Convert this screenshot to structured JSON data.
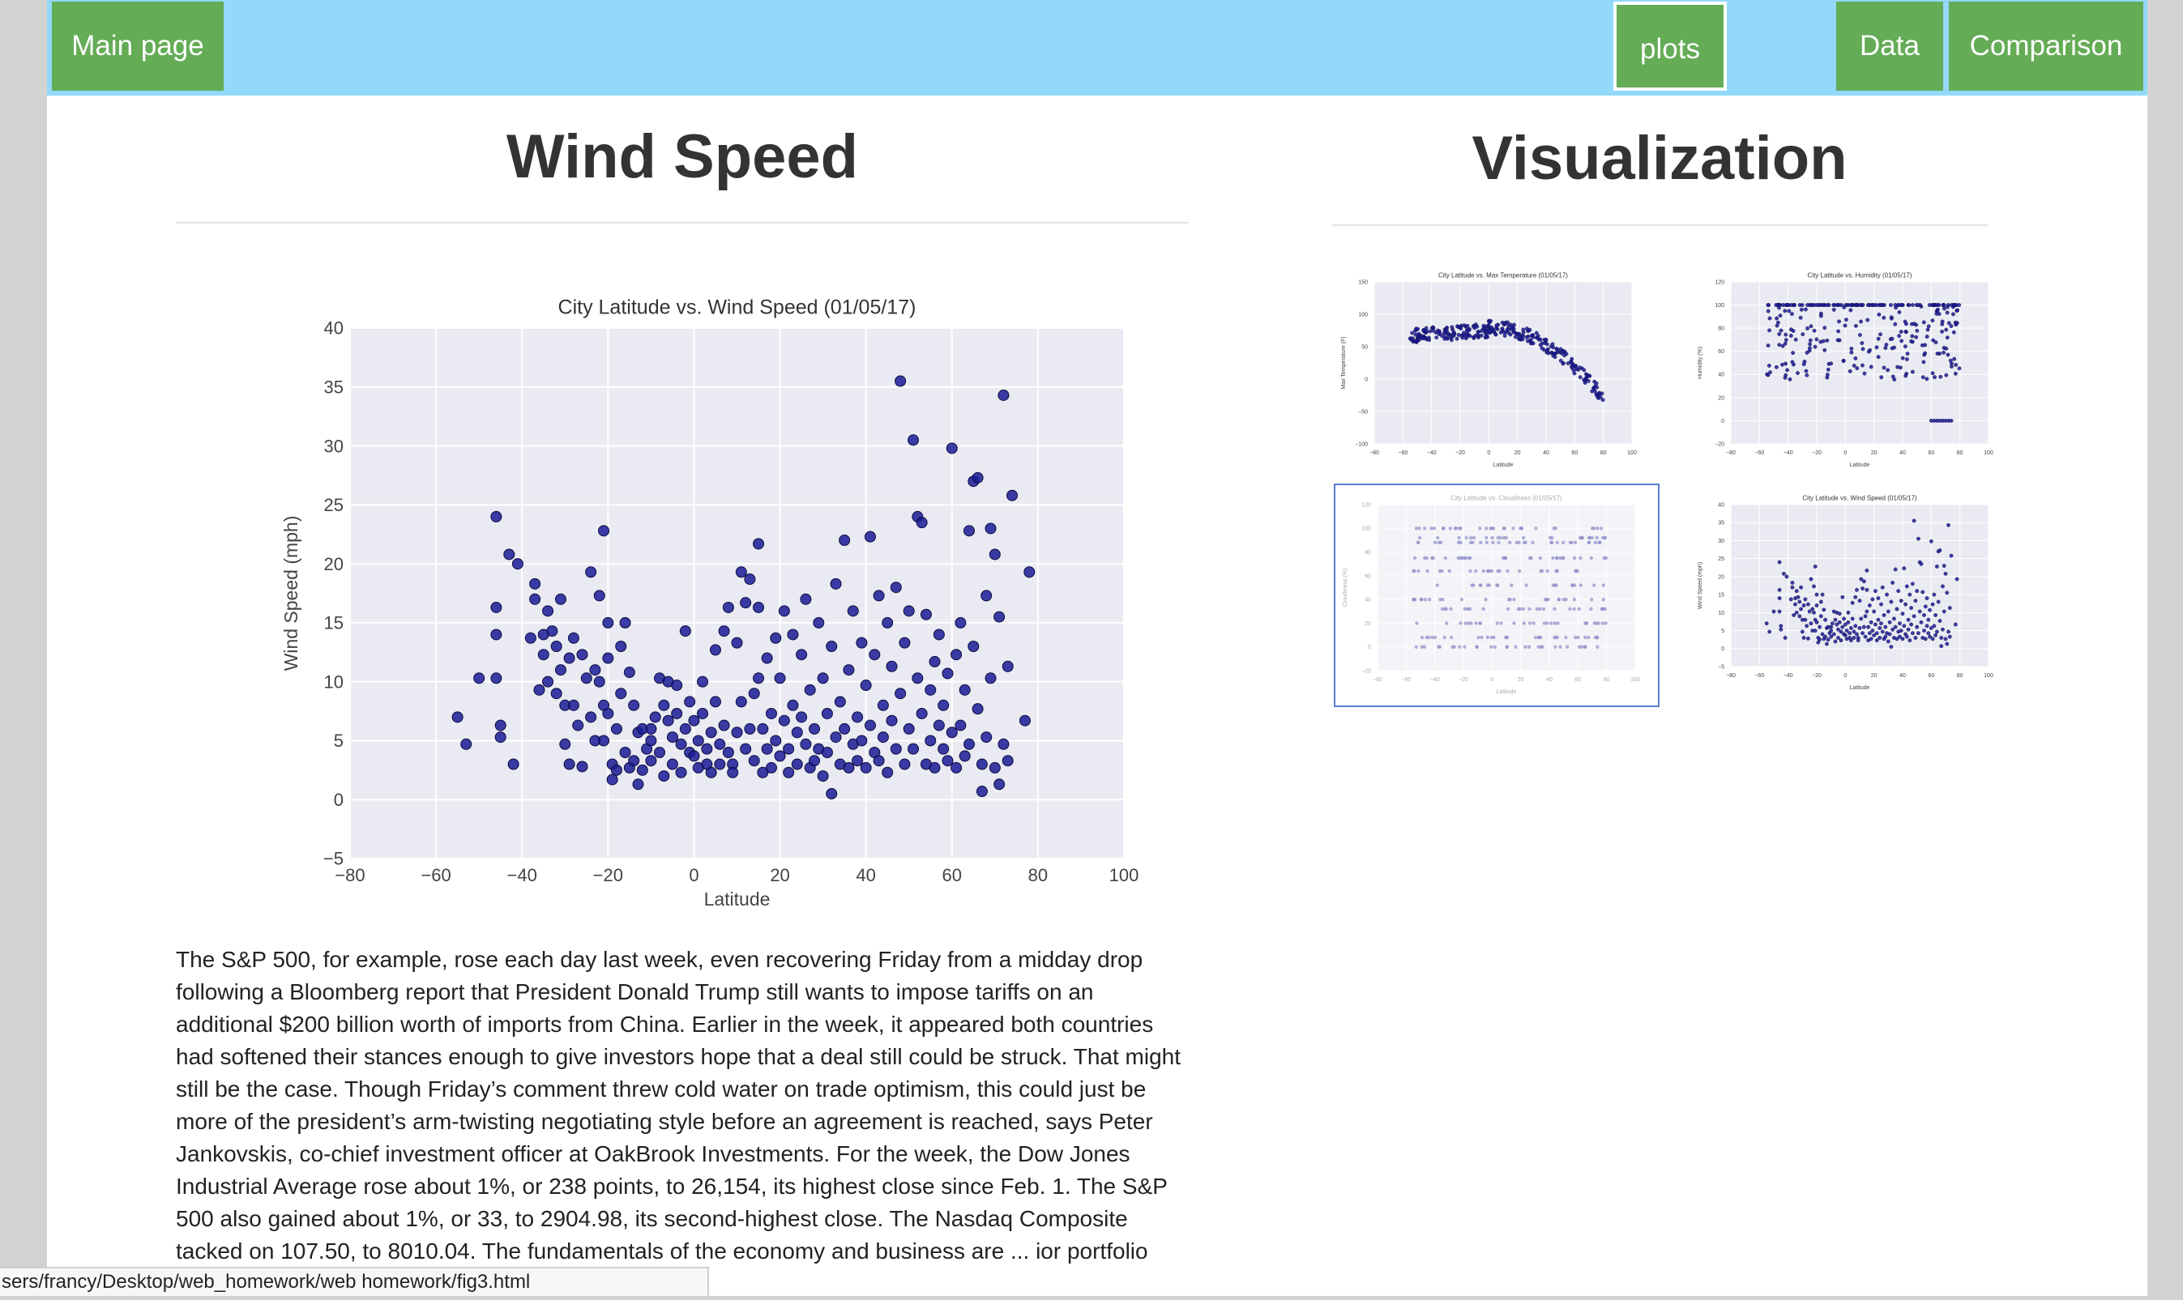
{
  "nav": {
    "main_page": "Main page",
    "plots": "plots",
    "data": "Data",
    "comparison": "Comparison"
  },
  "left": {
    "title": "Wind Speed",
    "paragraph": "The S&P 500, for example, rose each day last week, even recovering Friday from a midday drop following a Bloomberg report that President Donald Trump still wants to impose tariffs on an additional $200 billion worth of imports from China. Earlier in the week, it appeared both countries had softened their stances enough to give investors hope that a deal still could be struck. That might still be the case. Though Friday’s comment threw cold water on trade optimism, this could just be more of the president’s arm-twisting negotiating style before an agreement is reached, says Peter Jankovskis, co-chief investment officer at OakBrook Investments. For the week, the Dow Jones Industrial Average rose about 1%, or 238 points, to 26,154, its highest close since Feb. 1. The S&P 500 also gained about 1%, or 33, to 2904.98, its second-highest close. The Nasdaq Composite tacked on 107.50, to 8010.04. The fundamentals of the economy and business are ... ior portfolio manager at Wells Fargo Asset"
  },
  "right": {
    "title": "Visualization"
  },
  "status_bar": {
    "url": "sers/francy/Desktop/web_homework/web homework/fig3.html"
  },
  "colors": {
    "navbar": "#93d9fa",
    "button": "#64ac56",
    "plot_bg": "#eaeaf2",
    "marker": "#1b1b96",
    "selected_border": "#5b7fd4"
  },
  "chart_data": [
    {
      "id": "wind-main",
      "type": "scatter",
      "title": "City Latitude vs. Wind Speed (01/05/17)",
      "xlabel": "Latitude",
      "ylabel": "Wind Speed (mph)",
      "xlim": [
        -80,
        100
      ],
      "ylim": [
        -5,
        40
      ],
      "xticks": [
        -80,
        -60,
        -40,
        -20,
        0,
        20,
        40,
        60,
        80,
        100
      ],
      "yticks": [
        -5,
        0,
        5,
        10,
        15,
        20,
        25,
        30,
        35,
        40
      ],
      "grid": true,
      "points": [
        [
          -55,
          7
        ],
        [
          -53,
          4.7
        ],
        [
          -50,
          10.3
        ],
        [
          -46,
          24
        ],
        [
          -46,
          16.3
        ],
        [
          -46,
          14
        ],
        [
          -46,
          10.3
        ],
        [
          -45,
          6.3
        ],
        [
          -45,
          5.3
        ],
        [
          -43,
          20.8
        ],
        [
          -42,
          3
        ],
        [
          -41,
          20
        ],
        [
          -38,
          13.7
        ],
        [
          -37,
          18.3
        ],
        [
          -37,
          17
        ],
        [
          -36,
          9.3
        ],
        [
          -35,
          14
        ],
        [
          -35,
          12.3
        ],
        [
          -34,
          10
        ],
        [
          -34,
          16
        ],
        [
          -33,
          14.3
        ],
        [
          -32,
          9
        ],
        [
          -32,
          13
        ],
        [
          -31,
          17
        ],
        [
          -31,
          11
        ],
        [
          -30,
          8
        ],
        [
          -30,
          4.7
        ],
        [
          -29,
          3
        ],
        [
          -29,
          12
        ],
        [
          -28,
          13.7
        ],
        [
          -28,
          8
        ],
        [
          -27,
          6.3
        ],
        [
          -26,
          2.8
        ],
        [
          -26,
          12.3
        ],
        [
          -25,
          10.3
        ],
        [
          -24,
          19.3
        ],
        [
          -24,
          7
        ],
        [
          -23,
          11
        ],
        [
          -23,
          5
        ],
        [
          -22,
          17.3
        ],
        [
          -22,
          10
        ],
        [
          -21,
          22.8
        ],
        [
          -21,
          8
        ],
        [
          -21,
          5
        ],
        [
          -20,
          15
        ],
        [
          -20,
          12
        ],
        [
          -20,
          7.3
        ],
        [
          -19,
          3
        ],
        [
          -19,
          1.7
        ],
        [
          -18,
          2.5
        ],
        [
          -18,
          6
        ],
        [
          -17,
          9
        ],
        [
          -17,
          13
        ],
        [
          -16,
          15
        ],
        [
          -16,
          4
        ],
        [
          -15,
          10.8
        ],
        [
          -15,
          2.7
        ],
        [
          -14,
          8
        ],
        [
          -14,
          3.3
        ],
        [
          -13,
          1.3
        ],
        [
          -13,
          5.7
        ],
        [
          -12,
          2.5
        ],
        [
          -12,
          6
        ],
        [
          -11,
          4.3
        ],
        [
          -10,
          3.3
        ],
        [
          -10,
          6
        ],
        [
          -10,
          5
        ],
        [
          -9,
          7
        ],
        [
          -8,
          10.3
        ],
        [
          -8,
          4
        ],
        [
          -7,
          2
        ],
        [
          -7,
          8
        ],
        [
          -6,
          10
        ],
        [
          -6,
          6.7
        ],
        [
          -5,
          5.3
        ],
        [
          -5,
          3
        ],
        [
          -4,
          9.7
        ],
        [
          -4,
          7.3
        ],
        [
          -3,
          4.7
        ],
        [
          -3,
          2.3
        ],
        [
          -2,
          14.3
        ],
        [
          -2,
          6
        ],
        [
          -1,
          8.3
        ],
        [
          -1,
          4
        ],
        [
          0,
          3.7
        ],
        [
          0,
          6.7
        ],
        [
          1,
          5
        ],
        [
          1,
          2.7
        ],
        [
          2,
          10
        ],
        [
          2,
          7.3
        ],
        [
          3,
          4.3
        ],
        [
          3,
          3
        ],
        [
          4,
          5.7
        ],
        [
          4,
          2.3
        ],
        [
          5,
          12.7
        ],
        [
          5,
          8.3
        ],
        [
          6,
          4.7
        ],
        [
          6,
          3
        ],
        [
          7,
          14.3
        ],
        [
          7,
          6.3
        ],
        [
          8,
          16.3
        ],
        [
          8,
          4
        ],
        [
          9,
          3
        ],
        [
          9,
          2.3
        ],
        [
          10,
          13.3
        ],
        [
          10,
          5.7
        ],
        [
          11,
          19.3
        ],
        [
          11,
          8.3
        ],
        [
          12,
          16.7
        ],
        [
          12,
          4.3
        ],
        [
          13,
          18.7
        ],
        [
          13,
          6
        ],
        [
          14,
          9
        ],
        [
          14,
          3.3
        ],
        [
          15,
          16.3
        ],
        [
          15,
          10.3
        ],
        [
          15,
          21.7
        ],
        [
          16,
          6
        ],
        [
          16,
          2.3
        ],
        [
          17,
          4.3
        ],
        [
          17,
          12
        ],
        [
          18,
          7.3
        ],
        [
          18,
          2.7
        ],
        [
          19,
          13.7
        ],
        [
          19,
          5
        ],
        [
          20,
          10.3
        ],
        [
          20,
          3.7
        ],
        [
          21,
          6.7
        ],
        [
          21,
          16
        ],
        [
          22,
          4.3
        ],
        [
          22,
          2.3
        ],
        [
          23,
          8
        ],
        [
          23,
          14
        ],
        [
          24,
          5.7
        ],
        [
          24,
          3
        ],
        [
          25,
          12.3
        ],
        [
          25,
          7
        ],
        [
          26,
          17
        ],
        [
          26,
          4.7
        ],
        [
          27,
          2.7
        ],
        [
          27,
          9.3
        ],
        [
          28,
          6
        ],
        [
          28,
          3.3
        ],
        [
          29,
          15
        ],
        [
          29,
          4.3
        ],
        [
          30,
          10.3
        ],
        [
          30,
          2
        ],
        [
          31,
          7.3
        ],
        [
          31,
          4
        ],
        [
          32,
          13
        ],
        [
          32,
          0.5
        ],
        [
          33,
          5.3
        ],
        [
          33,
          18.3
        ],
        [
          34,
          3
        ],
        [
          34,
          8.3
        ],
        [
          35,
          22
        ],
        [
          35,
          6
        ],
        [
          36,
          2.7
        ],
        [
          36,
          11
        ],
        [
          37,
          4.7
        ],
        [
          37,
          16
        ],
        [
          38,
          7
        ],
        [
          38,
          3.3
        ],
        [
          39,
          13.3
        ],
        [
          39,
          5
        ],
        [
          40,
          9.7
        ],
        [
          40,
          2.7
        ],
        [
          41,
          22.3
        ],
        [
          41,
          6.3
        ],
        [
          42,
          4
        ],
        [
          42,
          12.3
        ],
        [
          43,
          17.3
        ],
        [
          43,
          3.3
        ],
        [
          44,
          8
        ],
        [
          44,
          5.3
        ],
        [
          45,
          15
        ],
        [
          45,
          2.3
        ],
        [
          46,
          11.3
        ],
        [
          46,
          6.7
        ],
        [
          47,
          4.3
        ],
        [
          47,
          18
        ],
        [
          48,
          35.5
        ],
        [
          48,
          9
        ],
        [
          49,
          3
        ],
        [
          49,
          13.3
        ],
        [
          50,
          6
        ],
        [
          50,
          16
        ],
        [
          51,
          30.5
        ],
        [
          51,
          4.3
        ],
        [
          52,
          24
        ],
        [
          52,
          10.3
        ],
        [
          53,
          23.5
        ],
        [
          53,
          7.3
        ],
        [
          54,
          3
        ],
        [
          54,
          15.7
        ],
        [
          55,
          9.3
        ],
        [
          55,
          5
        ],
        [
          56,
          11.7
        ],
        [
          56,
          2.7
        ],
        [
          57,
          14
        ],
        [
          57,
          6.3
        ],
        [
          58,
          4.3
        ],
        [
          58,
          8
        ],
        [
          59,
          3.3
        ],
        [
          59,
          10.7
        ],
        [
          60,
          29.8
        ],
        [
          60,
          5.7
        ],
        [
          61,
          12.3
        ],
        [
          61,
          2.7
        ],
        [
          62,
          15
        ],
        [
          62,
          6.3
        ],
        [
          63,
          3.7
        ],
        [
          63,
          9.3
        ],
        [
          64,
          22.8
        ],
        [
          64,
          4.7
        ],
        [
          65,
          27
        ],
        [
          65,
          13
        ],
        [
          66,
          27.3
        ],
        [
          66,
          7.7
        ],
        [
          67,
          3
        ],
        [
          67,
          0.7
        ],
        [
          68,
          17.3
        ],
        [
          68,
          5.3
        ],
        [
          69,
          23
        ],
        [
          69,
          10.3
        ],
        [
          70,
          20.8
        ],
        [
          70,
          2.7
        ],
        [
          71,
          15.5
        ],
        [
          71,
          1.3
        ],
        [
          72,
          34.3
        ],
        [
          72,
          4.7
        ],
        [
          73,
          11.3
        ],
        [
          73,
          3.3
        ],
        [
          74,
          25.8
        ],
        [
          77,
          6.7
        ],
        [
          78,
          19.3
        ]
      ]
    },
    {
      "id": "temp-thumb",
      "type": "scatter",
      "title": "City Latitude vs. Max Temperature (01/05/17)",
      "xlabel": "Latitude",
      "ylabel": "Max Temperature (F)",
      "xlim": [
        -80,
        100
      ],
      "ylim": [
        -100,
        150
      ],
      "xticks": [
        -80,
        -60,
        -40,
        -20,
        0,
        20,
        40,
        60,
        80,
        100
      ],
      "yticks": [
        -100,
        -50,
        0,
        50,
        100,
        150
      ]
    },
    {
      "id": "humidity-thumb",
      "type": "scatter",
      "title": "City Latitude vs. Humidity (01/05/17)",
      "xlabel": "Latitude",
      "ylabel": "Humidity (%)",
      "xlim": [
        -80,
        100
      ],
      "ylim": [
        -20,
        120
      ],
      "xticks": [
        -80,
        -60,
        -40,
        -20,
        0,
        20,
        40,
        60,
        80,
        100
      ],
      "yticks": [
        -20,
        0,
        20,
        40,
        60,
        80,
        100,
        120
      ]
    },
    {
      "id": "cloud-thumb",
      "type": "scatter",
      "title": "City Latitude vs. Cloudiness (01/05/17)",
      "xlabel": "Latitude",
      "ylabel": "Cloudiness (%)",
      "xlim": [
        -80,
        100
      ],
      "ylim": [
        -20,
        120
      ],
      "xticks": [
        -80,
        -60,
        -40,
        -20,
        0,
        20,
        40,
        60,
        80,
        100
      ],
      "yticks": [
        -20,
        0,
        20,
        40,
        60,
        80,
        100,
        120
      ]
    },
    {
      "id": "wind-thumb",
      "type": "scatter",
      "title": "City Latitude vs. Wind Speed (01/05/17)",
      "xlabel": "Latitude",
      "ylabel": "Wind Speed (mph)",
      "xlim": [
        -80,
        100
      ],
      "ylim": [
        -5,
        40
      ],
      "xticks": [
        -80,
        -60,
        -40,
        -20,
        0,
        20,
        40,
        60,
        80,
        100
      ],
      "yticks": [
        -5,
        0,
        5,
        10,
        15,
        20,
        25,
        30,
        35,
        40
      ]
    }
  ]
}
